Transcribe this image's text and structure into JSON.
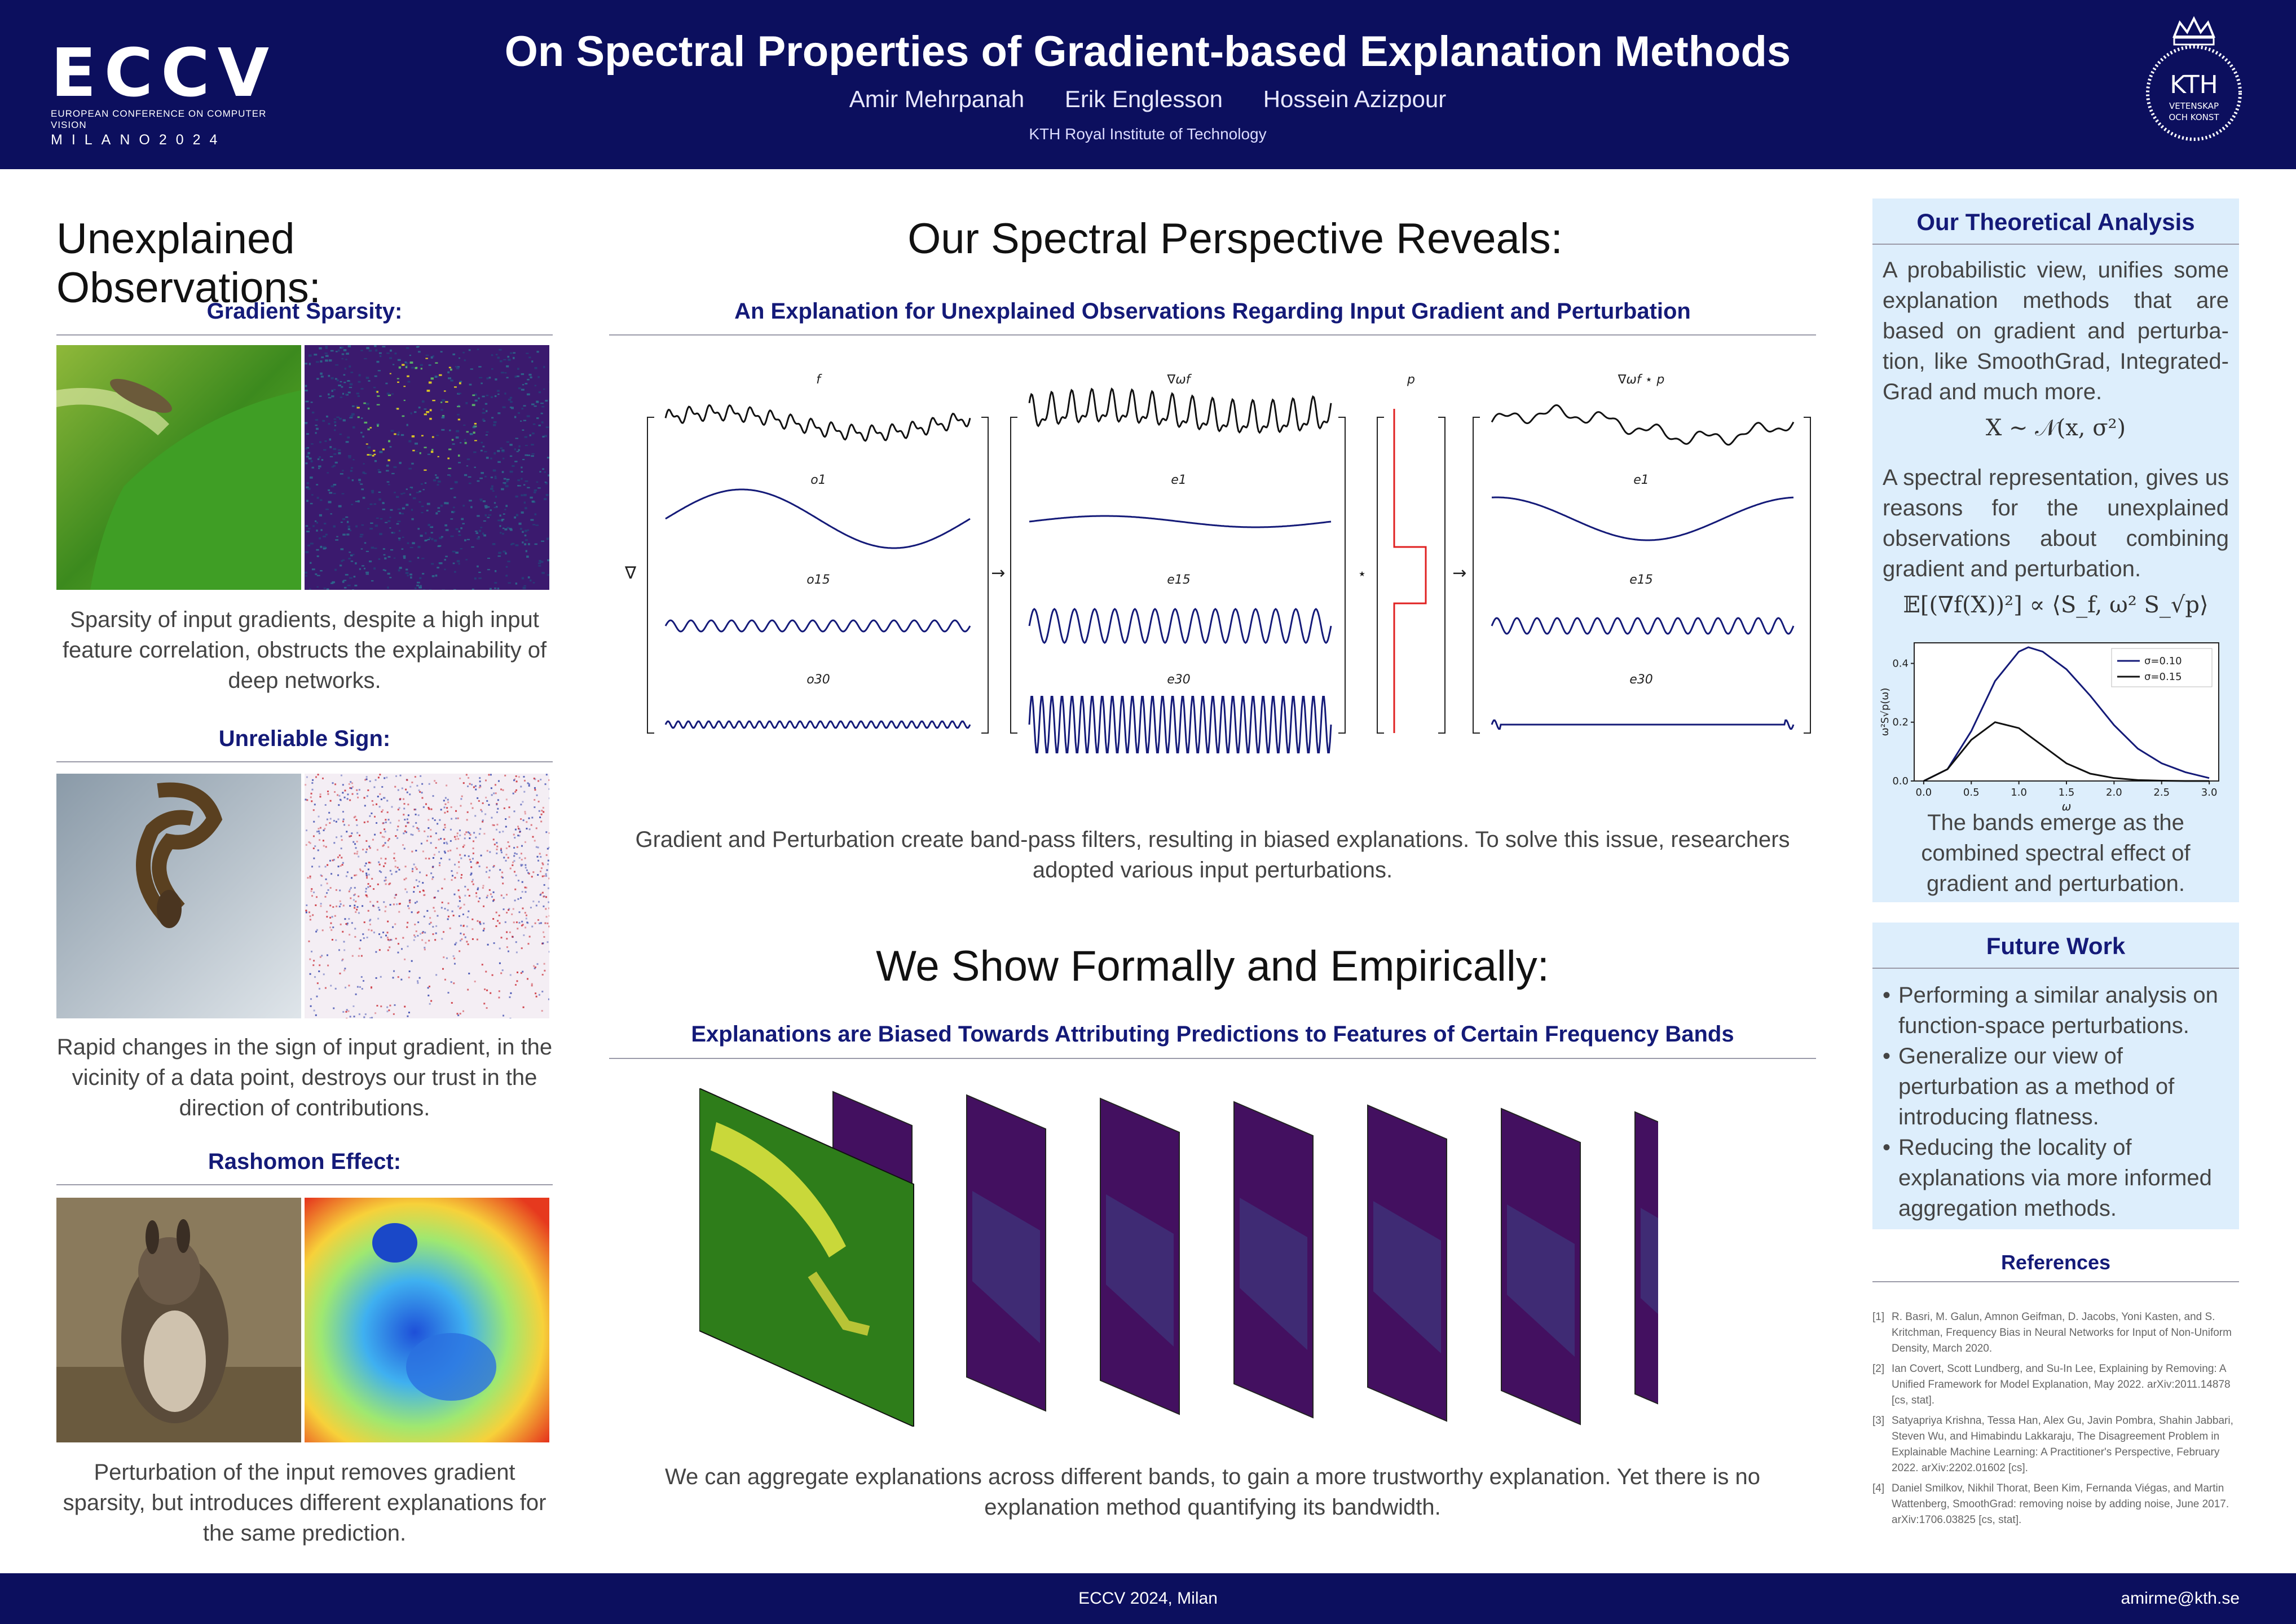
{
  "header": {
    "logo_text": "ECCV",
    "logo_sub": "EUROPEAN CONFERENCE ON COMPUTER VISION",
    "logo_city": "MILANO2024",
    "title": "On Spectral Properties of Gradient-based Explanation Methods",
    "authors": [
      "Amir Mehrpanah",
      "Erik Englesson",
      "Hossein Azizpour"
    ],
    "affiliation": "KTH Royal Institute of Technology",
    "kth_logo": {
      "main": "KTH",
      "line1": "VETENSKAP",
      "line2": "OCH KONST"
    }
  },
  "left": {
    "heading": "Unexplained Observations:",
    "sections": [
      {
        "title": "Gradient Sparsity:",
        "caption": "Sparsity of input gradients, despite a high input feature correlation, obstructs the explainability of deep networks."
      },
      {
        "title": "Unreliable Sign:",
        "caption": "Rapid changes in the sign of input gradient, in the vicinity of a data point, destroys our trust in the direction of contributions."
      },
      {
        "title": "Rashomon Effect:",
        "caption": "Perturbation of the input removes gradient sparsity, but introduces different explanations for the same prediction."
      }
    ]
  },
  "middle": {
    "heading1": "Our Spectral Perspective Reveals:",
    "subheading1": "An Explanation for Unexplained Observations Regarding Input Gradient and Perturbation",
    "diagram": {
      "col_labels": [
        "f",
        "∇ωf",
        "p",
        "∇ωf ⋆ p"
      ],
      "rows1": [
        "o1",
        "o15",
        "o30"
      ],
      "rows2": [
        "e1",
        "e15",
        "e30"
      ],
      "ops": [
        "∇",
        "→",
        "⋆",
        "→"
      ]
    },
    "caption1": "Gradient and Perturbation create band-pass filters, resulting in biased explanations. To solve this issue, researchers adopted various input perturbations.",
    "heading2": "We Show Formally and Empirically:",
    "subheading2": "Explanations are Biased Towards Attributing Predictions to Features of Certain Frequency Bands",
    "caption2": "We can aggregate explanations across different bands, to gain a more trustworthy explanation. Yet there is no explanation method quantifying its bandwidth."
  },
  "right": {
    "panel1": {
      "title": "Our Theoretical Analysis",
      "text1": "A probabilistic view, unifies some explanation methods that are based on gradient and perturba-tion, like SmoothGrad, Integrated-Grad and much more.",
      "eq1": "X ∼ 𝒩(x, σ²)",
      "text2": "A spectral representation, gives us reasons for the unexplained observations about combining gradient and perturbation.",
      "eq2": "𝔼[(∇f(X))²] ∝ ⟨S_f, ω² S_√p⟩",
      "caption": "The bands emerge as the combined spectral effect of gradient and perturbation."
    },
    "panel2": {
      "title": "Future Work",
      "items": [
        "Performing a similar analysis on function-space perturbations.",
        "Generalize our view of perturbation as a method of introducing flatness.",
        "Reducing the locality of explanations via more informed aggregation methods."
      ]
    },
    "references": {
      "title": "References",
      "items": [
        "R. Basri, M. Galun, Amnon Geifman, D. Jacobs, Yoni Kasten, and S. Kritchman, Frequency Bias in Neural Networks for Input of Non-Uniform Density, March 2020.",
        "Ian Covert, Scott Lundberg, and Su-In Lee, Explaining by Removing: A Unified Framework for Model Explanation, May 2022. arXiv:2011.14878 [cs, stat].",
        "Satyapriya Krishna, Tessa Han, Alex Gu, Javin Pombra, Shahin Jabbari, Steven Wu, and Himabindu Lakkaraju, The Disagreement Problem in Explainable Machine Learning: A Practitioner's Perspective, February 2022. arXiv:2202.01602 [cs].",
        "Daniel Smilkov, Nikhil Thorat, Been Kim, Fernanda Viégas, and Martin Wattenberg, SmoothGrad: removing noise by adding noise, June 2017. arXiv:1706.03825 [cs, stat]."
      ]
    }
  },
  "chart_data": {
    "type": "line",
    "xlabel": "ω",
    "ylabel": "ω²S√p(ω)",
    "xlim": [
      -0.1,
      3.1
    ],
    "ylim": [
      0,
      0.47
    ],
    "xticks": [
      0.0,
      0.5,
      1.0,
      1.5,
      2.0,
      2.5,
      3.0
    ],
    "yticks": [
      0.0,
      0.2,
      0.4
    ],
    "legend_position": "top-right",
    "series": [
      {
        "name": "σ=0.10",
        "color": "#141a78",
        "x": [
          0.0,
          0.25,
          0.5,
          0.75,
          1.0,
          1.1,
          1.25,
          1.5,
          1.75,
          2.0,
          2.25,
          2.5,
          2.75,
          3.0
        ],
        "y": [
          0.0,
          0.04,
          0.17,
          0.34,
          0.44,
          0.455,
          0.44,
          0.38,
          0.29,
          0.19,
          0.11,
          0.06,
          0.03,
          0.01
        ]
      },
      {
        "name": "σ=0.15",
        "color": "#111111",
        "x": [
          0.0,
          0.25,
          0.5,
          0.75,
          1.0,
          1.25,
          1.5,
          1.75,
          2.0,
          2.25,
          2.5,
          2.75,
          3.0
        ],
        "y": [
          0.0,
          0.04,
          0.14,
          0.2,
          0.18,
          0.12,
          0.06,
          0.025,
          0.01,
          0.003,
          0.001,
          0.0,
          0.0
        ]
      }
    ]
  },
  "footer": {
    "center": "ECCV 2024, Milan",
    "right": "amirme@kth.se"
  }
}
